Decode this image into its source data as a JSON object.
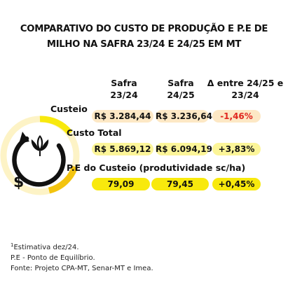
{
  "title_line1": "COMPARATIVO DO CUSTO DE PRODUÇÃO E P.E DE",
  "title_line2": "MILHO NA SAFRA 23/24 E 24/25 EM MT",
  "chart_data": {
    "type": "table",
    "columns": [
      {
        "line1": "Safra",
        "line2": "23/24"
      },
      {
        "line1": "Safra",
        "line2": "24/25"
      },
      {
        "line1": "Δ entre 24/25 e",
        "line2": "23/24"
      }
    ],
    "rows": [
      {
        "label": "Custeio",
        "values": [
          "R$ 3.284,44",
          "R$ 3.236,64",
          "-1,46%"
        ]
      },
      {
        "label": "Custo Total",
        "values": [
          "R$ 5.869,12",
          "R$ 6.094,19",
          "+3,83%"
        ]
      },
      {
        "label": "P.E do Custeio (produtividade sc/ha)",
        "values": [
          "79,09",
          "79,45",
          "+0,45%"
        ]
      }
    ]
  },
  "colors": {
    "custeio_pill": "#fde8c5",
    "custo_total_pill": "#fcf598",
    "pe_pill": "#f8e90d",
    "negative_text": "#e0261f",
    "ring_gold": "#f3c40f",
    "ring_dark": "#111111"
  },
  "icon": {
    "name": "dollar-corn-cycle-icon",
    "glyph": "$"
  },
  "footnotes": {
    "sup": "1",
    "line1": "Estimativa dez/24.",
    "line2": "P.E - Ponto de Equilíbrio.",
    "line3": "Fonte: Projeto CPA-MT, Senar-MT e Imea."
  }
}
